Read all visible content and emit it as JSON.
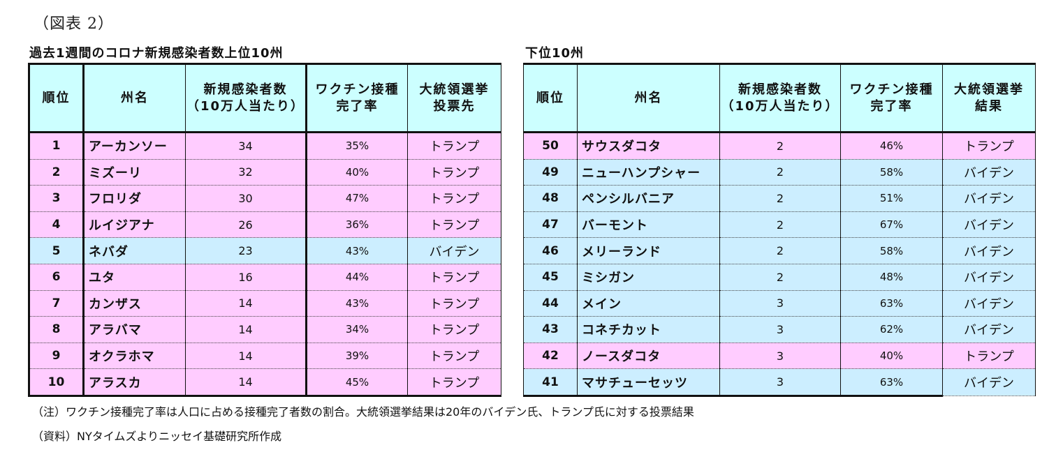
{
  "figure_label": "（図表 2）",
  "colors": {
    "header_bg": "#ccffff",
    "trump_bg": "#ffccff",
    "biden_bg": "#cceeff"
  },
  "top_table": {
    "title": "過去1週間のコロナ新規感染者数上位10州",
    "headers": [
      "順位",
      "州名",
      "新規感染者数\n（10万人当たり）",
      "ワクチン接種\n完了率",
      "大統領選挙\n投票先"
    ],
    "header_lines": [
      [
        "順位"
      ],
      [
        "州名"
      ],
      [
        "新規感染者数",
        "（10万人当たり）"
      ],
      [
        "ワクチン接種",
        "完了率"
      ],
      [
        "大統領選挙",
        "投票先"
      ]
    ],
    "rows": [
      {
        "rank": "1",
        "state": "アーカンソー",
        "cases": "34",
        "vaccinated": "35%",
        "vote": "トランプ",
        "party": "trump"
      },
      {
        "rank": "2",
        "state": "ミズーリ",
        "cases": "32",
        "vaccinated": "40%",
        "vote": "トランプ",
        "party": "trump"
      },
      {
        "rank": "3",
        "state": "フロリダ",
        "cases": "30",
        "vaccinated": "47%",
        "vote": "トランプ",
        "party": "trump"
      },
      {
        "rank": "4",
        "state": "ルイジアナ",
        "cases": "26",
        "vaccinated": "36%",
        "vote": "トランプ",
        "party": "trump"
      },
      {
        "rank": "5",
        "state": "ネバダ",
        "cases": "23",
        "vaccinated": "43%",
        "vote": "バイデン",
        "party": "biden"
      },
      {
        "rank": "6",
        "state": "ユタ",
        "cases": "16",
        "vaccinated": "44%",
        "vote": "トランプ",
        "party": "trump"
      },
      {
        "rank": "7",
        "state": "カンザス",
        "cases": "14",
        "vaccinated": "43%",
        "vote": "トランプ",
        "party": "trump"
      },
      {
        "rank": "8",
        "state": "アラバマ",
        "cases": "14",
        "vaccinated": "34%",
        "vote": "トランプ",
        "party": "trump"
      },
      {
        "rank": "9",
        "state": "オクラホマ",
        "cases": "14",
        "vaccinated": "39%",
        "vote": "トランプ",
        "party": "trump"
      },
      {
        "rank": "10",
        "state": "アラスカ",
        "cases": "14",
        "vaccinated": "45%",
        "vote": "トランプ",
        "party": "trump"
      }
    ]
  },
  "bottom_table": {
    "title": "下位10州",
    "header_lines": [
      [
        "順位"
      ],
      [
        "州名"
      ],
      [
        "新規感染者数",
        "（10万人当たり）"
      ],
      [
        "ワクチン接種",
        "完了率"
      ],
      [
        "大統領選挙",
        "結果"
      ]
    ],
    "rows": [
      {
        "rank": "50",
        "state": "サウスダコタ",
        "cases": "2",
        "vaccinated": "46%",
        "vote": "トランプ",
        "party": "trump"
      },
      {
        "rank": "49",
        "state": "ニューハンプシャー",
        "cases": "2",
        "vaccinated": "58%",
        "vote": "バイデン",
        "party": "biden"
      },
      {
        "rank": "48",
        "state": "ペンシルバニア",
        "cases": "2",
        "vaccinated": "51%",
        "vote": "バイデン",
        "party": "biden"
      },
      {
        "rank": "47",
        "state": "バーモント",
        "cases": "2",
        "vaccinated": "67%",
        "vote": "バイデン",
        "party": "biden"
      },
      {
        "rank": "46",
        "state": "メリーランド",
        "cases": "2",
        "vaccinated": "58%",
        "vote": "バイデン",
        "party": "biden"
      },
      {
        "rank": "45",
        "state": "ミシガン",
        "cases": "2",
        "vaccinated": "48%",
        "vote": "バイデン",
        "party": "biden"
      },
      {
        "rank": "44",
        "state": "メイン",
        "cases": "3",
        "vaccinated": "63%",
        "vote": "バイデン",
        "party": "biden"
      },
      {
        "rank": "43",
        "state": "コネチカット",
        "cases": "3",
        "vaccinated": "62%",
        "vote": "バイデン",
        "party": "biden"
      },
      {
        "rank": "42",
        "state": "ノースダコタ",
        "cases": "3",
        "vaccinated": "40%",
        "vote": "トランプ",
        "party": "trump"
      },
      {
        "rank": "41",
        "state": "マサチューセッツ",
        "cases": "3",
        "vaccinated": "63%",
        "vote": "バイデン",
        "party": "biden"
      }
    ]
  },
  "notes": {
    "note": "（注）ワクチン接種完了率は人口に占める接種完了者数の割合。大統領選挙結果は20年のバイデン氏、トランプ氏に対する投票結果",
    "source": "（資料）NYタイムズよりニッセイ基礎研究所作成"
  }
}
